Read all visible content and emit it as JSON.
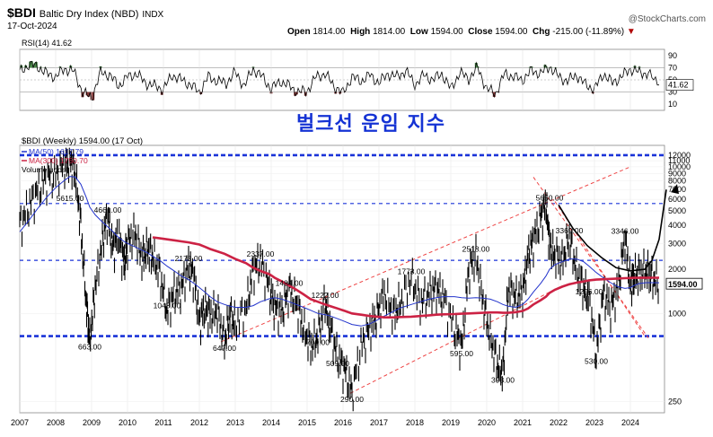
{
  "header": {
    "symbol": "$BDI",
    "name": "Baltic Dry Index (NBD)",
    "exchange": "INDX",
    "date": "17-Oct-2024",
    "watermark": "@StockCharts.com",
    "open_label": "Open",
    "open_value": "1814.00",
    "high_label": "High",
    "high_value": "1814.00",
    "low_label": "Low",
    "low_value": "1594.00",
    "close_label": "Close",
    "close_value": "1594.00",
    "chg_label": "Chg",
    "chg_value": "-215.00 (-11.89%)",
    "chg_arrow": "▼"
  },
  "title_ko": "벌크선 운임 지수",
  "colors": {
    "price": "#000000",
    "ma50": "#2233cc",
    "ma300": "#cc2244",
    "rsi": "#000000",
    "blue_line": "#1a33d8",
    "trend": "#ee4444",
    "rsi_fill": "#4a8a4a",
    "rsi_fill_low": "#8a3a3a"
  },
  "chart_data": [
    {
      "type": "line",
      "name": "RSI panel",
      "legend": "RSI(14) 41.62",
      "last_value": "41.62",
      "ylim": [
        0,
        100
      ],
      "yticks": [
        "90",
        "70",
        "50",
        "30",
        "10"
      ],
      "overbought": 70,
      "oversold": 30,
      "x": [
        2007.0,
        2007.25,
        2007.5,
        2007.75,
        2008.0,
        2008.25,
        2008.5,
        2008.75,
        2009.0,
        2009.25,
        2009.5,
        2009.75,
        2010.0,
        2010.25,
        2010.5,
        2010.75,
        2011.0,
        2011.25,
        2011.5,
        2011.75,
        2012.0,
        2012.25,
        2012.5,
        2012.75,
        2013.0,
        2013.25,
        2013.5,
        2013.75,
        2014.0,
        2014.25,
        2014.5,
        2014.75,
        2015.0,
        2015.25,
        2015.5,
        2015.75,
        2016.0,
        2016.25,
        2016.5,
        2016.75,
        2017.0,
        2017.25,
        2017.5,
        2017.75,
        2018.0,
        2018.25,
        2018.5,
        2018.75,
        2019.0,
        2019.25,
        2019.5,
        2019.75,
        2020.0,
        2020.25,
        2020.5,
        2020.75,
        2021.0,
        2021.25,
        2021.5,
        2021.75,
        2022.0,
        2022.25,
        2022.5,
        2022.75,
        2023.0,
        2023.25,
        2023.5,
        2023.75,
        2024.0,
        2024.25,
        2024.5,
        2024.8
      ],
      "values": [
        62,
        75,
        72,
        60,
        55,
        68,
        64,
        30,
        20,
        62,
        58,
        40,
        55,
        60,
        45,
        40,
        35,
        58,
        50,
        42,
        30,
        55,
        48,
        45,
        62,
        40,
        68,
        55,
        35,
        48,
        40,
        30,
        32,
        55,
        60,
        40,
        28,
        55,
        48,
        58,
        45,
        60,
        55,
        65,
        42,
        58,
        50,
        60,
        35,
        62,
        52,
        70,
        35,
        28,
        60,
        55,
        50,
        65,
        60,
        72,
        55,
        48,
        58,
        42,
        35,
        60,
        45,
        55,
        68,
        62,
        60,
        41.62
      ]
    },
    {
      "type": "line",
      "name": "BDI weekly price (log scale)",
      "legend_price": "$BDI (Weekly) 1594.00 (17 Oct)",
      "legend_ma50": "MA(50) 1617.79",
      "legend_ma300": "MA(300) 1750.70",
      "legend_volume": "Volume undef",
      "last_price_label": "1594.00",
      "yscale": "log",
      "ylim": [
        210,
        14000
      ],
      "yticks": [
        "12000",
        "11000",
        "10000",
        "9000",
        "8000",
        "7000",
        "6000",
        "5000",
        "4000",
        "3000",
        "2000",
        "1000",
        "250"
      ],
      "xlabels": [
        "2007",
        "2008",
        "2009",
        "2010",
        "2011",
        "2012",
        "2013",
        "2014",
        "2015",
        "2016",
        "2017",
        "2018",
        "2019",
        "2020",
        "2021",
        "2022",
        "2023",
        "2024"
      ],
      "x": [
        2007.0,
        2007.25,
        2007.5,
        2007.75,
        2008.0,
        2008.25,
        2008.4,
        2008.55,
        2008.7,
        2008.85,
        2008.95,
        2009.1,
        2009.3,
        2009.45,
        2009.6,
        2009.75,
        2009.9,
        2010.0,
        2010.2,
        2010.4,
        2010.55,
        2010.7,
        2010.9,
        2011.1,
        2011.3,
        2011.5,
        2011.7,
        2011.85,
        2012.0,
        2012.15,
        2012.3,
        2012.5,
        2012.7,
        2012.85,
        2013.0,
        2013.3,
        2013.5,
        2013.7,
        2013.95,
        2014.1,
        2014.3,
        2014.5,
        2014.7,
        2014.9,
        2015.1,
        2015.3,
        2015.5,
        2015.65,
        2015.85,
        2016.05,
        2016.25,
        2016.5,
        2016.75,
        2016.95,
        2017.15,
        2017.4,
        2017.6,
        2017.9,
        2018.15,
        2018.4,
        2018.6,
        2018.8,
        2019.1,
        2019.3,
        2019.5,
        2019.7,
        2019.9,
        2020.1,
        2020.3,
        2020.45,
        2020.6,
        2020.8,
        2021.0,
        2021.15,
        2021.3,
        2021.5,
        2021.65,
        2021.75,
        2021.9,
        2022.1,
        2022.3,
        2022.5,
        2022.7,
        2022.85,
        2023.05,
        2023.25,
        2023.45,
        2023.65,
        2023.85,
        2024.0,
        2024.1,
        2024.25,
        2024.45,
        2024.6,
        2024.8
      ],
      "values": [
        4000,
        5400,
        7000,
        8500,
        9000,
        10500,
        11300,
        9000,
        4000,
        1200,
        663,
        1500,
        3200,
        4661,
        2800,
        3500,
        2200,
        3000,
        3600,
        2400,
        2800,
        2500,
        1900,
        1043,
        1400,
        1500,
        2173,
        1800,
        900,
        1100,
        1000,
        1050,
        647,
        1000,
        850,
        1100,
        2000,
        2337,
        1500,
        1100,
        1050,
        1484,
        1200,
        800,
        600,
        709,
        1222,
        800,
        509,
        420,
        290,
        600,
        800,
        1000,
        1400,
        1000,
        1200,
        1773,
        1200,
        1400,
        1500,
        1300,
        800,
        595,
        2000,
        2518,
        1200,
        700,
        450,
        393,
        1500,
        1300,
        1400,
        2500,
        3200,
        4500,
        5650,
        3000,
        2500,
        2300,
        3369,
        2000,
        1500,
        1296,
        530,
        1400,
        1100,
        1500,
        3346,
        1600,
        1800,
        1900,
        2000,
        1800,
        1594
      ],
      "ma50_values": [
        3600,
        4300,
        5200,
        6200,
        7200,
        8100,
        8600,
        8500,
        7600,
        6200,
        5300,
        4700,
        4200,
        3900,
        3600,
        3300,
        3100,
        3000,
        2850,
        2700,
        2600,
        2450,
        2300,
        2100,
        1950,
        1800,
        1700,
        1600,
        1500,
        1400,
        1300,
        1200,
        1150,
        1120,
        1100,
        1100,
        1130,
        1200,
        1260,
        1280,
        1250,
        1200,
        1150,
        1100,
        1050,
        1000,
        980,
        960,
        920,
        880,
        840,
        820,
        850,
        900,
        960,
        1030,
        1090,
        1150,
        1200,
        1250,
        1280,
        1300,
        1300,
        1280,
        1270,
        1280,
        1270,
        1250,
        1200,
        1150,
        1120,
        1100,
        1150,
        1250,
        1400,
        1600,
        1800,
        2000,
        2150,
        2250,
        2350,
        2350,
        2250,
        2100,
        1900,
        1750,
        1620,
        1520,
        1480,
        1500,
        1550,
        1600,
        1620,
        1620,
        1618
      ],
      "ma300_values": [
        null,
        null,
        null,
        null,
        null,
        null,
        null,
        null,
        null,
        null,
        null,
        null,
        null,
        null,
        null,
        null,
        null,
        null,
        null,
        null,
        null,
        3300,
        3250,
        3200,
        3150,
        3100,
        3050,
        3000,
        2950,
        2850,
        2750,
        2650,
        2550,
        2450,
        2350,
        2200,
        2050,
        1950,
        1850,
        1750,
        1650,
        1550,
        1450,
        1350,
        1250,
        1200,
        1150,
        1120,
        1080,
        1040,
        1000,
        980,
        960,
        950,
        940,
        940,
        945,
        950,
        960,
        970,
        980,
        985,
        990,
        995,
        1000,
        1005,
        1010,
        1015,
        1015,
        1010,
        1010,
        1020,
        1040,
        1080,
        1150,
        1230,
        1300,
        1380,
        1450,
        1520,
        1580,
        1620,
        1650,
        1680,
        1700,
        1710,
        1720,
        1730,
        1740,
        1745,
        1748,
        1750,
        1751,
        1751,
        1750.7
      ],
      "support_levels": [
        12000,
        5615,
        2300,
        700
      ],
      "horizontal_lines": [
        12000,
        5615,
        2300,
        700
      ],
      "annotations": [
        {
          "x": 2008.4,
          "y": 5615,
          "label": "5615.00"
        },
        {
          "x": 2008.95,
          "y": 663,
          "label": "663.00"
        },
        {
          "x": 2009.45,
          "y": 4661,
          "label": "4661.00"
        },
        {
          "x": 2011.1,
          "y": 1043,
          "label": "1043.00"
        },
        {
          "x": 2011.7,
          "y": 2173,
          "label": "2173.00"
        },
        {
          "x": 2012.7,
          "y": 647,
          "label": "647.00"
        },
        {
          "x": 2013.7,
          "y": 2337,
          "label": "2337.00"
        },
        {
          "x": 2014.5,
          "y": 1484,
          "label": "1484.00"
        },
        {
          "x": 2015.3,
          "y": 709,
          "label": "709.00"
        },
        {
          "x": 2015.5,
          "y": 1222,
          "label": "1222.00"
        },
        {
          "x": 2015.85,
          "y": 509,
          "label": "509.00"
        },
        {
          "x": 2016.25,
          "y": 290,
          "label": "290.00"
        },
        {
          "x": 2017.9,
          "y": 1773,
          "label": "1773.00"
        },
        {
          "x": 2019.3,
          "y": 595,
          "label": "595.00"
        },
        {
          "x": 2019.7,
          "y": 2518,
          "label": "2518.00"
        },
        {
          "x": 2020.45,
          "y": 393,
          "label": "393.00"
        },
        {
          "x": 2021.75,
          "y": 5650,
          "label": "5650.00"
        },
        {
          "x": 2022.3,
          "y": 3369,
          "label": "3369.00"
        },
        {
          "x": 2022.85,
          "y": 1296,
          "label": "1296.00"
        },
        {
          "x": 2023.05,
          "y": 530,
          "label": "530.00"
        },
        {
          "x": 2023.85,
          "y": 3346,
          "label": "3346.00"
        }
      ],
      "trendlines": [
        {
          "from": [
            2012.6,
            640
          ],
          "to": [
            2024.0,
            10000
          ]
        },
        {
          "from": [
            2016.2,
            285
          ],
          "to": [
            2022.0,
            1500
          ]
        },
        {
          "from": [
            2021.3,
            8500
          ],
          "to": [
            2024.5,
            680
          ]
        },
        {
          "from": [
            2021.9,
            5800
          ],
          "to": [
            2024.4,
            700
          ]
        }
      ],
      "projection_curve": {
        "x": [
          2022.0,
          2022.4,
          2022.8,
          2023.2,
          2023.6,
          2024.0,
          2024.4,
          2024.6,
          2024.8,
          2025.0
        ],
        "y": [
          5500,
          3800,
          2900,
          2400,
          2050,
          1950,
          2000,
          2300,
          3200,
          7000
        ]
      }
    }
  ]
}
